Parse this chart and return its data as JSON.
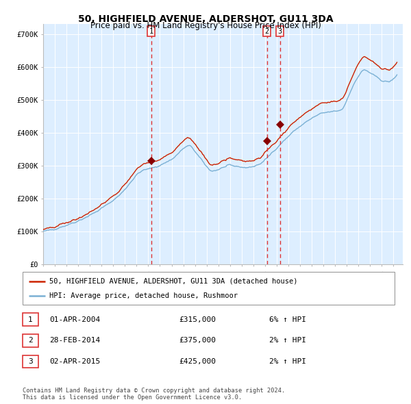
{
  "title": "50, HIGHFIELD AVENUE, ALDERSHOT, GU11 3DA",
  "subtitle": "Price paid vs. HM Land Registry's House Price Index (HPI)",
  "ylim": [
    0,
    730000
  ],
  "xlim_start": 1995.0,
  "xlim_end": 2025.8,
  "sale_dates": [
    2004.25,
    2014.17,
    2015.27
  ],
  "sale_prices": [
    315000,
    375000,
    425000
  ],
  "sale_labels": [
    "1",
    "2",
    "3"
  ],
  "background_color": "#ddeeff",
  "line_color_red": "#cc2200",
  "line_color_blue": "#7ab0d4",
  "dashed_line_color": "#dd3333",
  "marker_color": "#880000",
  "legend_line1": "50, HIGHFIELD AVENUE, ALDERSHOT, GU11 3DA (detached house)",
  "legend_line2": "HPI: Average price, detached house, Rushmoor",
  "table_entries": [
    {
      "label": "1",
      "date": "01-APR-2004",
      "price": "£315,000",
      "change": "6% ↑ HPI"
    },
    {
      "label": "2",
      "date": "28-FEB-2014",
      "price": "£375,000",
      "change": "2% ↑ HPI"
    },
    {
      "label": "3",
      "date": "02-APR-2015",
      "price": "£425,000",
      "change": "2% ↑ HPI"
    }
  ],
  "footer": "Contains HM Land Registry data © Crown copyright and database right 2024.\nThis data is licensed under the Open Government Licence v3.0."
}
